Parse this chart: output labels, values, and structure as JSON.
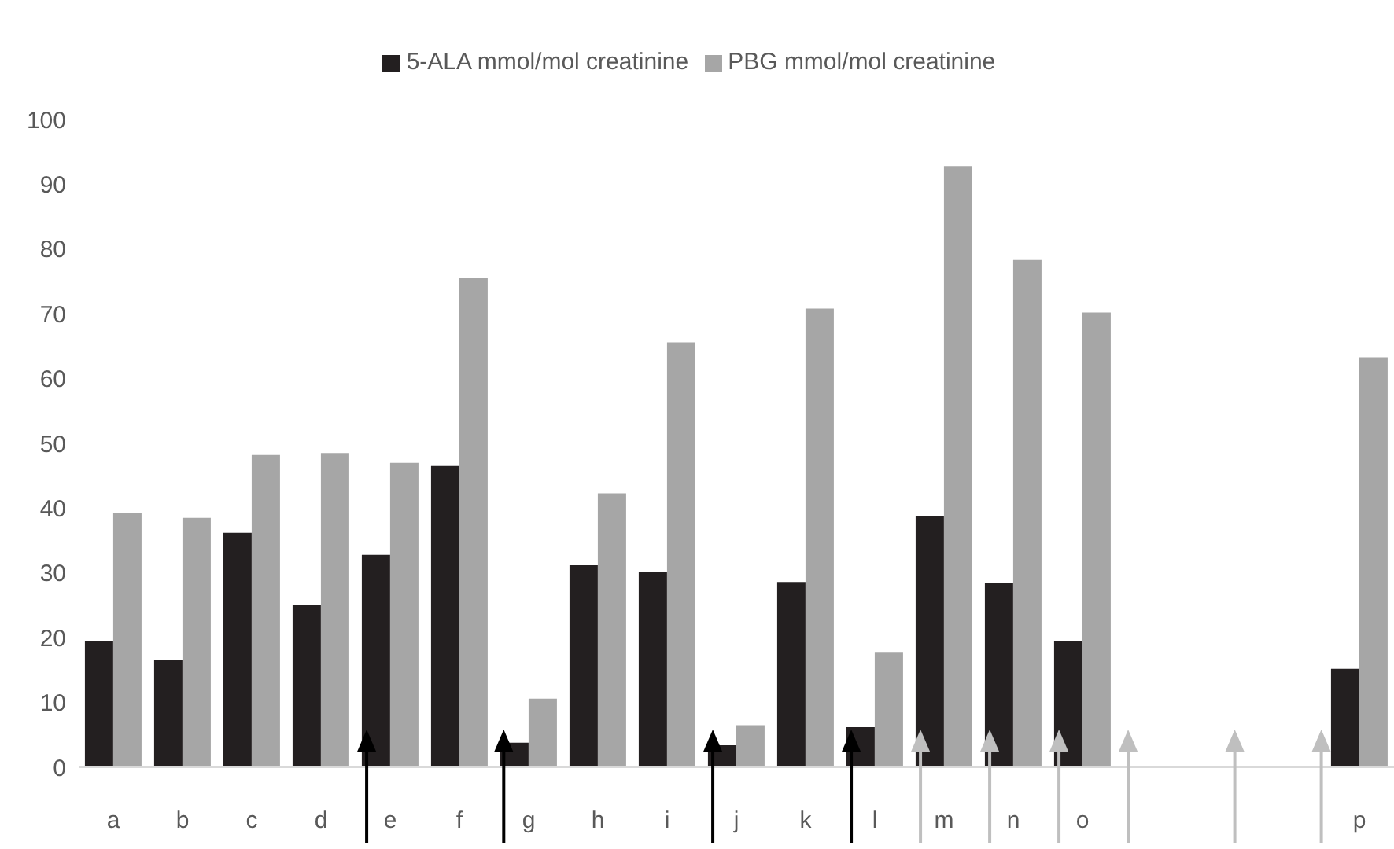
{
  "chart_data": {
    "type": "bar",
    "categories": [
      "a",
      "b",
      "c",
      "d",
      "e",
      "f",
      "g",
      "h",
      "i",
      "j",
      "k",
      "l",
      "m",
      "n",
      "o",
      null,
      null,
      null,
      "p"
    ],
    "series": [
      {
        "name": "5-ALA mmol/mol creatinine",
        "color": "#231f20",
        "values": [
          19.5,
          16.5,
          36.2,
          25,
          32.8,
          46.5,
          3.8,
          31.2,
          30.2,
          3.4,
          28.6,
          6.2,
          38.8,
          28.4,
          19.5,
          null,
          null,
          null,
          15.2
        ]
      },
      {
        "name": "PBG mmol/mol creatinine",
        "color": "#a6a6a6",
        "values": [
          39.3,
          38.5,
          48.2,
          48.5,
          47,
          75.5,
          10.6,
          42.3,
          65.6,
          6.5,
          70.8,
          17.7,
          92.8,
          78.3,
          70.2,
          null,
          null,
          null,
          63.3
        ]
      }
    ],
    "ylim": [
      0,
      100
    ],
    "yticks": [
      0,
      10,
      20,
      30,
      40,
      50,
      60,
      70,
      80,
      90,
      100
    ],
    "legend": "top"
  }
}
